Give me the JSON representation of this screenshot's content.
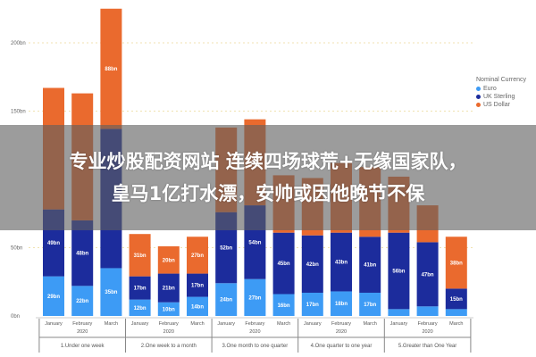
{
  "overlay": {
    "line1": "专业炒股配资网站 连续四场球荒+无缘国家队，",
    "line2": "皇马1亿打水漂，安帅或因他晚节不保"
  },
  "chart_data": {
    "type": "bar",
    "stacked": true,
    "title": "",
    "xlabel": "",
    "ylabel": "",
    "ylim": [
      0,
      230
    ],
    "yticks": [
      0,
      50,
      150,
      200
    ],
    "ytick_labels": [
      "0bn",
      "50bn",
      "150bn",
      "200bn"
    ],
    "grid": "horizontal dotted",
    "legend_placement": "right",
    "legend_title": "Nominal Currency",
    "categories": [
      "January",
      "February",
      "March",
      "January",
      "February",
      "March",
      "January",
      "February",
      "March",
      "January",
      "February",
      "March",
      "January",
      "February",
      "March"
    ],
    "year_labels": [
      "2020",
      "2020",
      "2020",
      "2020",
      "2020"
    ],
    "groups": [
      "1.Under one week",
      "2.One week to a month",
      "3.One month to one quarter",
      "4.One quarter to one year",
      "5.Greater than One Year"
    ],
    "series": [
      {
        "name": "Euro",
        "color": "#3d9bf5",
        "values": [
          29,
          22,
          35,
          12,
          10,
          14,
          24,
          27,
          16,
          17,
          18,
          17,
          5,
          7,
          5
        ]
      },
      {
        "name": "UK Sterling",
        "color": "#1c2c9c",
        "values": [
          49,
          48,
          102,
          17,
          21,
          17,
          52,
          54,
          45,
          42,
          43,
          41,
          56,
          47,
          15
        ]
      },
      {
        "name": "US Dollar",
        "color": "#ea6a2e",
        "values": [
          89,
          93,
          88,
          31,
          20,
          27,
          62,
          63,
          42,
          42,
          51,
          51,
          41,
          27,
          38
        ]
      }
    ]
  }
}
